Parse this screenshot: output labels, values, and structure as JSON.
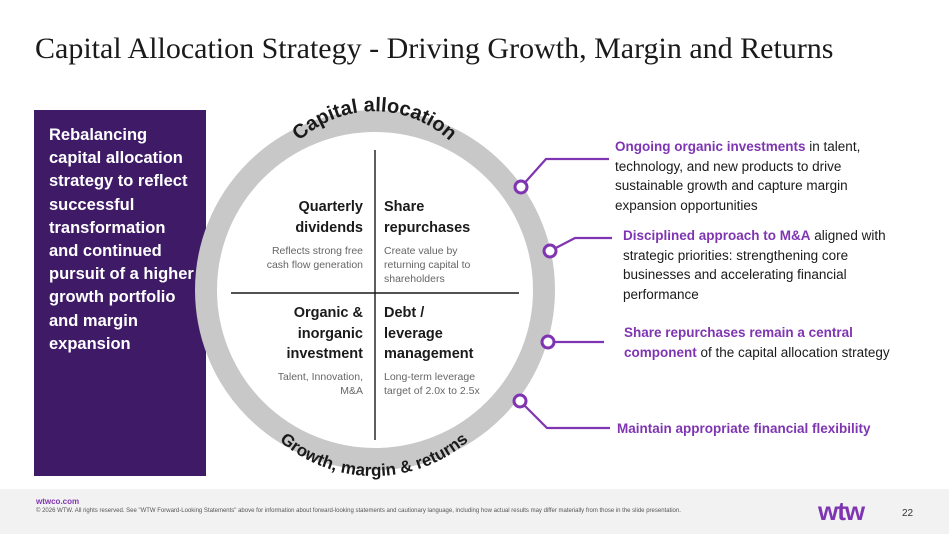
{
  "slide": {
    "title": "Capital Allocation Strategy -  Driving Growth, Margin and Returns"
  },
  "side_panel": {
    "text": "Rebalancing capital allocation strategy to reflect successful transformation and continued pursuit of a higher growth portfolio and margin expansion"
  },
  "wheel": {
    "top_arc_text": "Capital allocation",
    "bottom_arc_text": "Growth, margin & returns",
    "ring_color": "#c8c8c8",
    "quadrants": {
      "top_left": {
        "title_line1": "Quarterly",
        "title_line2": "dividends",
        "sub_line1": "Reflects strong free",
        "sub_line2": "cash flow generation"
      },
      "top_right": {
        "title_line1": "Share",
        "title_line2": "repurchases",
        "sub_line1": "Create value by",
        "sub_line2": "returning capital to",
        "sub_line3": "shareholders"
      },
      "bottom_left": {
        "title_line1": "Organic &",
        "title_line2": "inorganic",
        "title_line3": "investment",
        "sub_line1": "Talent, Innovation,",
        "sub_line2": "M&A"
      },
      "bottom_right": {
        "title_line1": "Debt /",
        "title_line2": "leverage",
        "title_line3": "management",
        "sub_line1": "Long-term leverage",
        "sub_line2": "target of 2.0x to 2.5x"
      }
    }
  },
  "callouts": [
    {
      "highlight": "Ongoing organic investments",
      "rest": " in talent, technology, and new products to drive sustainable growth and capture margin expansion opportunities"
    },
    {
      "highlight": "Disciplined approach to M&A",
      "rest": " aligned with strategic priorities: strengthening core businesses and accelerating financial performance"
    },
    {
      "highlight": "Share repurchases remain a central component",
      "rest": " of the capital allocation strategy"
    },
    {
      "highlight": "Maintain appropriate financial flexibility",
      "rest": ""
    }
  ],
  "accent_color": "#7f35b2",
  "panel_color": "#3f1b67",
  "footer": {
    "url": "wtwco.com",
    "legal": "© 2026 WTW. All rights reserved. See \"WTW Forward-Looking Statements\" above for information about forward-looking statements and cautionary language, including how actual results may differ materially from those in the slide presentation.",
    "logo": "wtw",
    "page_number": "22"
  }
}
